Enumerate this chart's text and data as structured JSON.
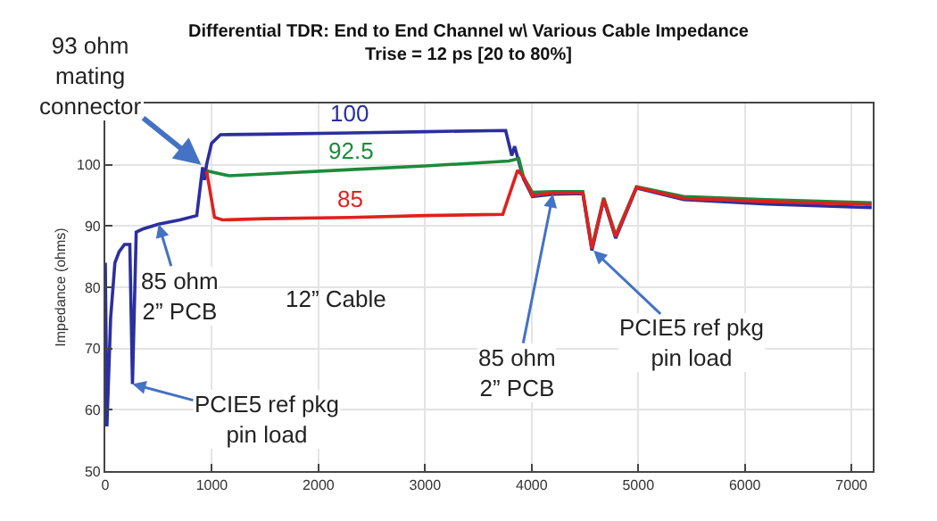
{
  "chart_data": {
    "type": "line",
    "title": "Differential TDR: End to End Channel w\\ Various Cable Impedance",
    "subtitle": "Trise = 12 ps [20 to 80%]",
    "ylabel": "Impedance (ohms)",
    "series": [
      {
        "name": "100",
        "color": "#2b2f9e",
        "x": [
          0,
          15,
          50,
          90,
          130,
          180,
          230,
          255,
          290,
          350,
          500,
          700,
          858,
          913,
          930,
          950,
          997,
          1080,
          1500,
          2300,
          3000,
          3756,
          3813,
          3840,
          3923,
          4007,
          4200,
          4480,
          4565,
          4676,
          4788,
          4983,
          5428,
          6200,
          7190
        ],
        "values": [
          84,
          57.3,
          75,
          84,
          85.8,
          87,
          87,
          64.2,
          89,
          89.5,
          90.3,
          91,
          91.7,
          99.6,
          97.5,
          100,
          103.5,
          104.9,
          105,
          105.2,
          105.4,
          105.6,
          101.5,
          103,
          97.7,
          94.8,
          95.2,
          95.3,
          86,
          94.3,
          88,
          96.2,
          94.3,
          93.6,
          93
        ]
      },
      {
        "name": "92.5",
        "color": "#1e8a3a",
        "x": [
          950,
          1164,
          1500,
          2300,
          3000,
          3784,
          3880,
          3923,
          4007,
          4200,
          4480,
          4565,
          4676,
          4788,
          4983,
          5428,
          6200,
          7190
        ],
        "values": [
          99,
          98.2,
          98.5,
          99.2,
          99.8,
          100.6,
          101,
          98,
          95.5,
          95.6,
          95.6,
          86.5,
          94.6,
          88.5,
          96.4,
          94.8,
          94.3,
          93.8
        ]
      },
      {
        "name": "85",
        "color": "#e0201e",
        "x": [
          950,
          1025,
          1100,
          1500,
          2300,
          3000,
          3729,
          3868,
          3923,
          4007,
          4200,
          4480,
          4565,
          4676,
          4788,
          4983,
          5428,
          6200,
          7190
        ],
        "values": [
          99,
          91.4,
          91,
          91.2,
          91.4,
          91.7,
          91.9,
          99.1,
          98,
          95,
          95.4,
          95.4,
          86.3,
          94.4,
          88.3,
          96.3,
          94.5,
          94,
          93.5
        ]
      }
    ],
    "xlim": [
      0,
      7200
    ],
    "ylim": [
      50,
      110
    ],
    "xticks": [
      0,
      1000,
      2000,
      3000,
      4000,
      5000,
      6000,
      7000
    ],
    "yticks": [
      50,
      60,
      70,
      80,
      90,
      100
    ],
    "grid": true,
    "legend": false,
    "marker": "none",
    "line_style": "solid",
    "annotations": [
      {
        "text": "93 ohm mating connector",
        "x": 900,
        "y": 100
      },
      "12” Cable",
      {
        "text": "85 ohm 2” PCB",
        "x": 500,
        "y": 90.3
      },
      {
        "text": "PCIE5 ref pkg pin load",
        "x": 255,
        "y": 64.2
      },
      {
        "text": "85 ohm 2” PCB",
        "x": 4200,
        "y": 95.2
      },
      {
        "text": "PCIE5 ref pkg pin load",
        "x": 4580,
        "y": 86
      }
    ]
  }
}
